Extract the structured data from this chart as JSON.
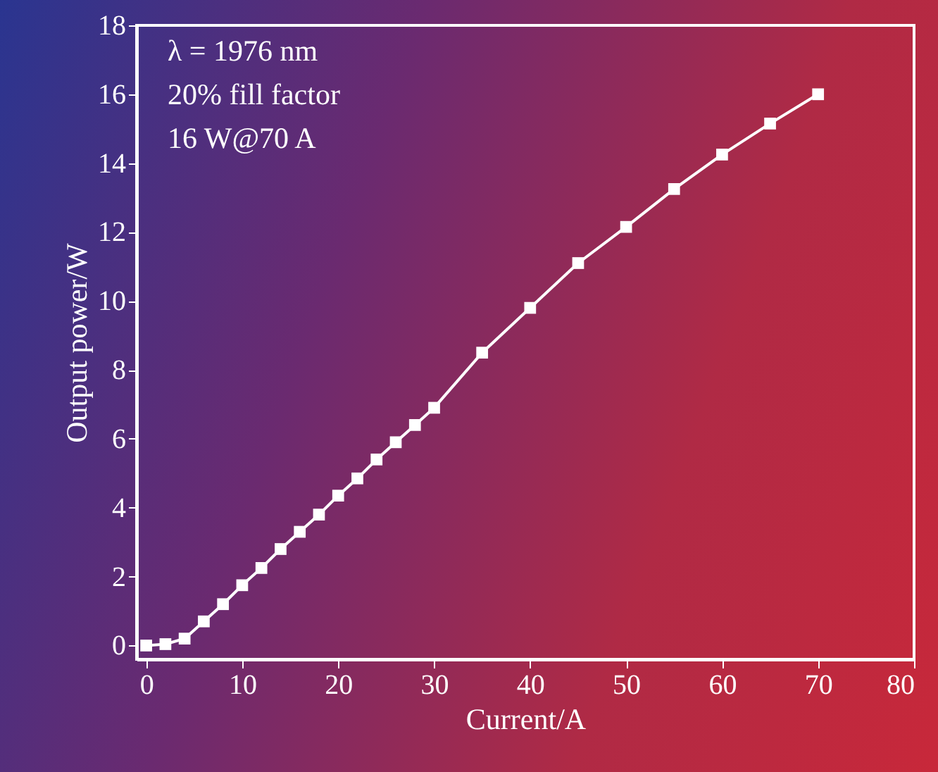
{
  "chart_data": {
    "type": "line",
    "xlabel": "Current/A",
    "ylabel": "Output power/W",
    "annotations": [
      "λ = 1976 nm",
      "20% fill factor",
      "16 W@70 A"
    ],
    "x": [
      0,
      2,
      4,
      6,
      8,
      10,
      12,
      14,
      16,
      18,
      20,
      22,
      24,
      26,
      28,
      30,
      35,
      40,
      45,
      50,
      55,
      60,
      65,
      70
    ],
    "series": [
      {
        "color": "#ffffff",
        "values": [
          0,
          0.04,
          0.2,
          0.7,
          1.2,
          1.75,
          2.25,
          2.8,
          3.3,
          3.8,
          4.35,
          4.85,
          5.4,
          5.9,
          6.4,
          6.9,
          8.5,
          9.8,
          11.1,
          12.15,
          13.25,
          14.25,
          15.15,
          16.0
        ]
      }
    ],
    "xlim": [
      -1,
      80
    ],
    "xticks": [
      0,
      10,
      20,
      30,
      40,
      50,
      60,
      70,
      80
    ],
    "ylim": [
      -0.4,
      18
    ],
    "yticks": [
      0,
      2,
      4,
      6,
      8,
      10,
      12,
      14,
      16,
      18
    ],
    "marker": "square",
    "line_style": "solid"
  }
}
